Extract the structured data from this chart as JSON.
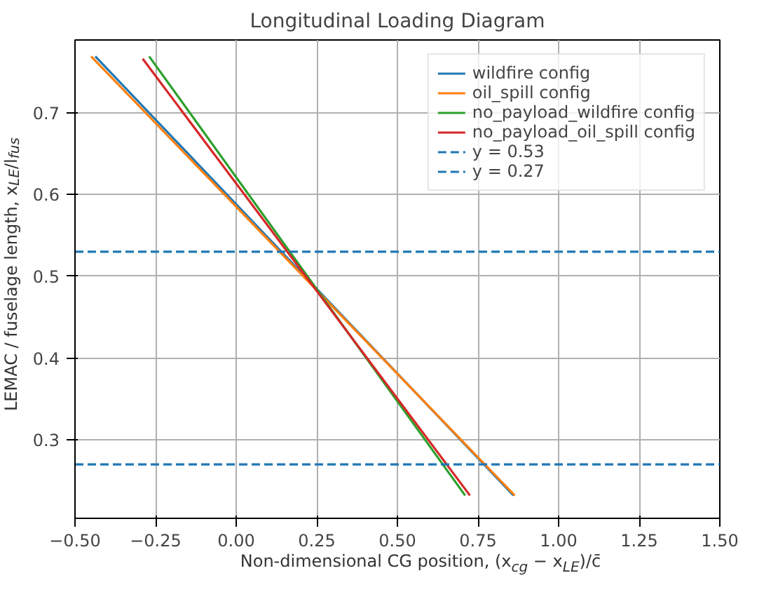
{
  "chart_data": {
    "type": "line",
    "title": "Longitudinal Loading Diagram",
    "xlabel": "Non-dimensional CG position, (x$_{cg}$ − x$_{LE}$)/c̄",
    "ylabel": "LEMAC / fuselage length, x$_{LE}$/l$_{fus}$",
    "series": [
      {
        "name": "wildfire config",
        "color": "#1f77b4",
        "x": [
          -0.437,
          0.86
        ],
        "values": [
          0.769,
          0.232
        ]
      },
      {
        "name": "oil_spill config",
        "color": "#ff7f0e",
        "x": [
          -0.45,
          0.864
        ],
        "values": [
          0.769,
          0.232
        ]
      },
      {
        "name": "no_payload_wildfire config",
        "color": "#2ca02c",
        "x": [
          -0.27,
          0.71
        ],
        "values": [
          0.769,
          0.232
        ]
      },
      {
        "name": "no_payload_oil_spill config",
        "color": "#d62728",
        "x": [
          -0.29,
          0.725
        ],
        "values": [
          0.766,
          0.232
        ]
      }
    ],
    "ref_lines": [
      {
        "axis": "y",
        "value": 0.53,
        "label": "y = 0.53",
        "color": "#1f77b4",
        "line_style": "dashed"
      },
      {
        "axis": "y",
        "value": 0.27,
        "label": "y = 0.27",
        "color": "#1f77b4",
        "line_style": "dashed"
      }
    ],
    "xlim": [
      -0.5,
      1.5
    ],
    "ylim": [
      0.204,
      0.789
    ],
    "xticks": [
      {
        "value": -0.5,
        "label": "−0.50"
      },
      {
        "value": -0.25,
        "label": "−0.25"
      },
      {
        "value": 0,
        "label": "0.00"
      },
      {
        "value": 0.25,
        "label": "0.25"
      },
      {
        "value": 0.5,
        "label": "0.50"
      },
      {
        "value": 0.75,
        "label": "0.75"
      },
      {
        "value": 1,
        "label": "1.00"
      },
      {
        "value": 1.25,
        "label": "1.25"
      },
      {
        "value": 1.5,
        "label": "1.50"
      }
    ],
    "yticks": [
      0.3,
      0.4,
      0.5,
      0.6,
      0.7
    ],
    "grid": true,
    "legend": "top right",
    "line_style": "solid",
    "marker": "none"
  }
}
